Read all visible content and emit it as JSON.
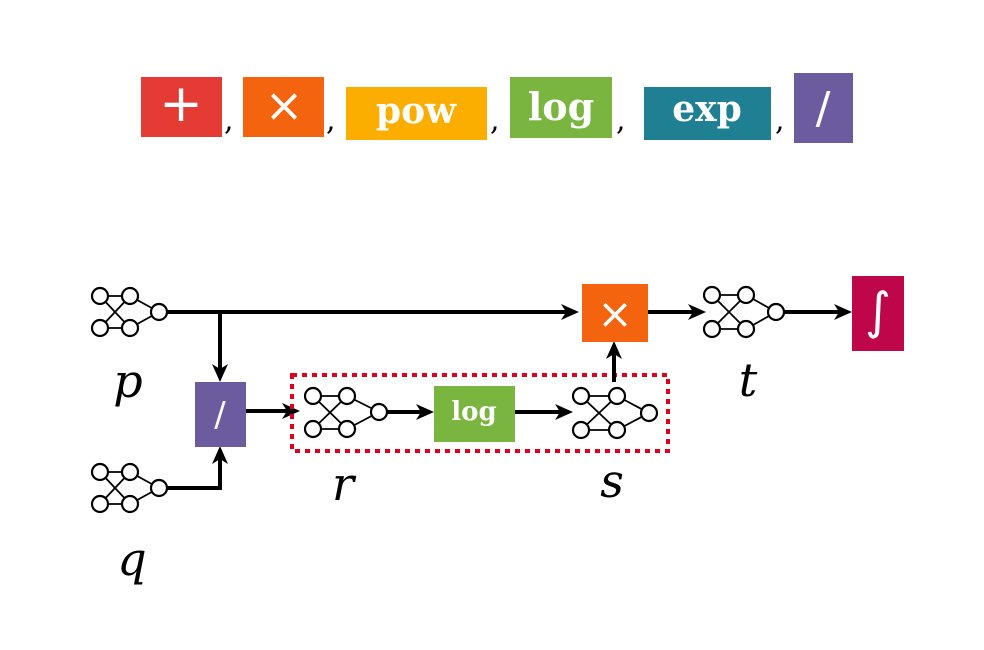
{
  "legend": {
    "ops": [
      {
        "label": "+",
        "color": "#e53b35"
      },
      {
        "label": "×",
        "color": "#f4640f"
      },
      {
        "label": "pow",
        "color": "#fcae00"
      },
      {
        "label": "log",
        "color": "#7ab540"
      },
      {
        "label": "exp",
        "color": "#1f7f93"
      },
      {
        "label": "/",
        "color": "#6c5b9e"
      }
    ],
    "separator": ","
  },
  "diagram": {
    "variables": {
      "p": "p",
      "q": "q",
      "r": "r",
      "s": "s",
      "t": "t"
    },
    "ops": {
      "divide": {
        "label": "/",
        "color": "#6c5b9e"
      },
      "log": {
        "label": "log",
        "color": "#7ab540"
      },
      "multiply": {
        "label": "×",
        "color": "#f4640f"
      },
      "integral": {
        "label": "∫",
        "color": "#c0064a"
      }
    },
    "highlight_color": "#e0001a"
  }
}
